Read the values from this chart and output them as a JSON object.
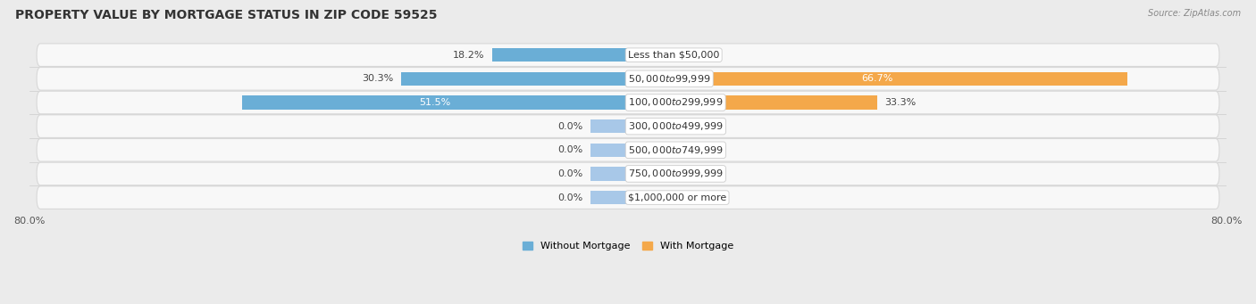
{
  "title": "PROPERTY VALUE BY MORTGAGE STATUS IN ZIP CODE 59525",
  "source_text": "Source: ZipAtlas.com",
  "categories": [
    "Less than $50,000",
    "$50,000 to $99,999",
    "$100,000 to $299,999",
    "$300,000 to $499,999",
    "$500,000 to $749,999",
    "$750,000 to $999,999",
    "$1,000,000 or more"
  ],
  "without_mortgage": [
    18.2,
    30.3,
    51.5,
    0.0,
    0.0,
    0.0,
    0.0
  ],
  "with_mortgage": [
    0.0,
    66.7,
    33.3,
    0.0,
    0.0,
    0.0,
    0.0
  ],
  "color_without_full": "#6aaed6",
  "color_with_full": "#f4a84a",
  "color_without_zero": "#a8c8e8",
  "color_with_zero": "#f8d0a0",
  "stub_size": 5.0,
  "xlim_left": -80,
  "xlim_right": 80,
  "bar_height": 0.58,
  "background_color": "#ebebeb",
  "row_bg_color": "#f8f8f8",
  "row_edge_color": "#d8d8d8",
  "title_fontsize": 10,
  "label_fontsize": 8,
  "source_fontsize": 7,
  "axis_fontsize": 8,
  "cat_label_fontsize": 8
}
